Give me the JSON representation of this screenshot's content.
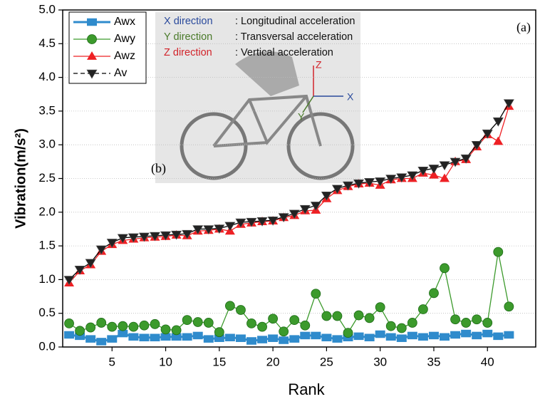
{
  "chart_data": {
    "type": "line",
    "xlabel": "Rank",
    "ylabel": "Vibration(m/s²)",
    "x": [
      1,
      2,
      3,
      4,
      5,
      6,
      7,
      8,
      9,
      10,
      11,
      12,
      13,
      14,
      15,
      16,
      17,
      18,
      19,
      20,
      21,
      22,
      23,
      24,
      25,
      26,
      27,
      28,
      29,
      30,
      31,
      32,
      33,
      34,
      35,
      36,
      37,
      38,
      39,
      40,
      41,
      42
    ],
    "series": [
      {
        "name": "Awx",
        "color": "#2f8bcc",
        "marker": "square",
        "values": [
          0.18,
          0.16,
          0.12,
          0.08,
          0.12,
          0.2,
          0.15,
          0.14,
          0.14,
          0.15,
          0.15,
          0.15,
          0.17,
          0.12,
          0.13,
          0.14,
          0.13,
          0.09,
          0.11,
          0.13,
          0.1,
          0.12,
          0.17,
          0.17,
          0.14,
          0.12,
          0.14,
          0.16,
          0.14,
          0.19,
          0.15,
          0.13,
          0.17,
          0.15,
          0.17,
          0.15,
          0.18,
          0.2,
          0.17,
          0.2,
          0.16,
          0.18
        ]
      },
      {
        "name": "Awy",
        "color": "#3c9a2c",
        "marker": "circle",
        "values": [
          0.35,
          0.24,
          0.29,
          0.36,
          0.3,
          0.31,
          0.3,
          0.32,
          0.34,
          0.26,
          0.25,
          0.4,
          0.37,
          0.36,
          0.22,
          0.61,
          0.55,
          0.35,
          0.3,
          0.42,
          0.23,
          0.4,
          0.32,
          0.79,
          0.46,
          0.46,
          0.21,
          0.47,
          0.43,
          0.59,
          0.31,
          0.28,
          0.36,
          0.56,
          0.8,
          1.17,
          0.41,
          0.36,
          0.41,
          0.36,
          1.41,
          0.6
        ]
      },
      {
        "name": "Awz",
        "color": "#ee2024",
        "marker": "triangle",
        "values": [
          0.95,
          1.13,
          1.22,
          1.42,
          1.52,
          1.58,
          1.6,
          1.62,
          1.63,
          1.64,
          1.66,
          1.65,
          1.72,
          1.73,
          1.75,
          1.72,
          1.82,
          1.84,
          1.86,
          1.87,
          1.92,
          1.95,
          2.02,
          2.03,
          2.2,
          2.32,
          2.38,
          2.42,
          2.43,
          2.4,
          2.48,
          2.5,
          2.5,
          2.58,
          2.55,
          2.5,
          2.75,
          2.78,
          2.97,
          3.15,
          3.05,
          3.57
        ]
      },
      {
        "name": "Av",
        "color": "#000000",
        "marker": "down-triangle",
        "values": [
          1.0,
          1.15,
          1.25,
          1.45,
          1.55,
          1.62,
          1.63,
          1.64,
          1.65,
          1.66,
          1.67,
          1.68,
          1.75,
          1.75,
          1.76,
          1.8,
          1.85,
          1.86,
          1.87,
          1.88,
          1.93,
          1.98,
          2.05,
          2.1,
          2.25,
          2.35,
          2.4,
          2.43,
          2.45,
          2.46,
          2.5,
          2.52,
          2.55,
          2.62,
          2.65,
          2.7,
          2.75,
          2.8,
          3.0,
          3.17,
          3.35,
          3.62
        ]
      }
    ],
    "xlim": [
      0.4,
      44.5
    ],
    "xticks": [
      5,
      10,
      15,
      20,
      25,
      30,
      35,
      40
    ],
    "ylim": [
      0,
      5
    ],
    "yticks": [
      {
        "value": 0,
        "label": "0.0"
      },
      0.5,
      {
        "value": 1,
        "label": "1.0"
      },
      1.5,
      {
        "value": 2,
        "label": "2.0"
      },
      2.5,
      {
        "value": 3,
        "label": "3.0"
      },
      3.5,
      {
        "value": 4,
        "label": "4.0"
      },
      4.5,
      {
        "value": 5,
        "label": "5.0"
      }
    ],
    "grid": true,
    "legend": "upper left",
    "panel_labels": [
      "(a)",
      "(b)"
    ],
    "inset": {
      "lines": [
        [
          "X direction",
          ":  Longitudinal acceleration"
        ],
        [
          "Y direction",
          ": Transversal acceleration"
        ],
        [
          "Z direction",
          ":  Vertical acceleration"
        ]
      ],
      "axes": [
        "X",
        "Y",
        "Z"
      ]
    }
  }
}
